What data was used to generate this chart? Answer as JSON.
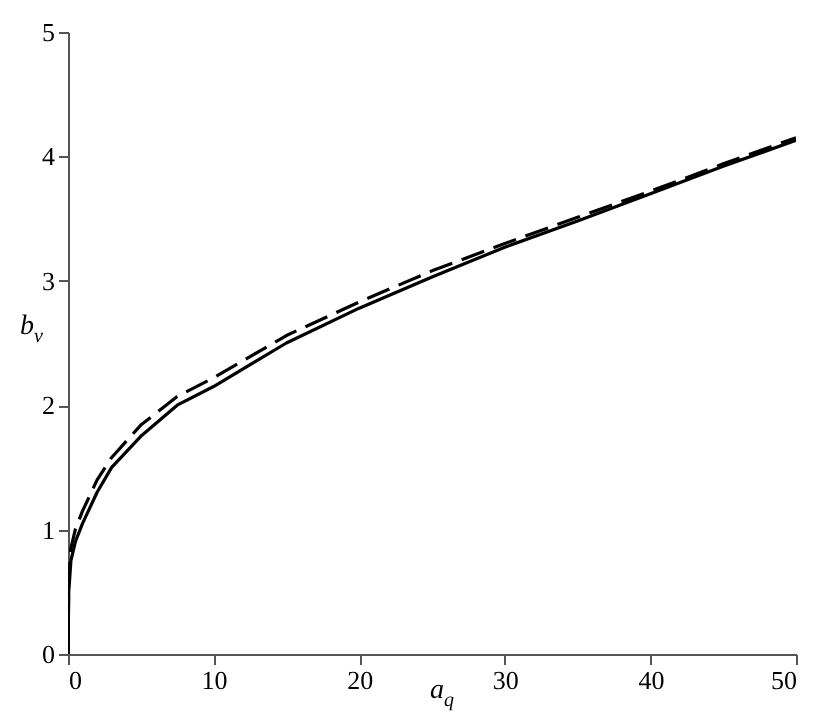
{
  "chart_data": {
    "type": "line",
    "xlabel": "a$_{q}$",
    "ylabel": "b$_{v}$",
    "x": [
      0,
      0.05,
      0.2,
      0.5,
      1,
      2,
      3,
      5,
      7.5,
      10,
      15,
      20,
      25,
      30,
      35,
      40,
      45,
      50
    ],
    "series": [
      {
        "color": "#000000",
        "line_style": "solid",
        "values": [
          0,
          0.5,
          0.75,
          0.9,
          1.05,
          1.3,
          1.5,
          1.75,
          2.0,
          2.15,
          2.5,
          2.78,
          3.03,
          3.27,
          3.48,
          3.7,
          3.92,
          4.13
        ]
      },
      {
        "color": "#000000",
        "line_style": "dashed",
        "values": [
          0,
          0.6,
          0.85,
          1.0,
          1.15,
          1.4,
          1.58,
          1.84,
          2.07,
          2.22,
          2.56,
          2.83,
          3.08,
          3.3,
          3.51,
          3.72,
          3.94,
          4.15
        ]
      }
    ],
    "xlim": [
      0,
      50
    ],
    "ylim": [
      0,
      5
    ],
    "xticks": [
      0,
      10,
      20,
      30,
      40,
      50
    ],
    "yticks": [
      0,
      1,
      2,
      3,
      4,
      5
    ],
    "grid": false
  }
}
